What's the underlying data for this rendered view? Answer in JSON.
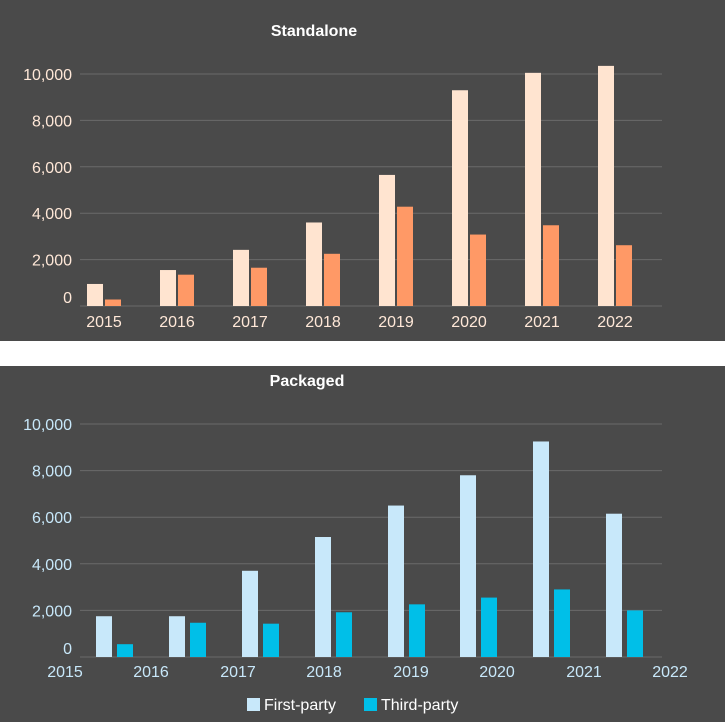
{
  "chart_data": [
    {
      "type": "bar",
      "title": "Standalone",
      "categories": [
        "2015",
        "2016",
        "2017",
        "2018",
        "2019",
        "2020",
        "2021",
        "2022"
      ],
      "series": [
        {
          "values": [
            950,
            1550,
            2420,
            3600,
            5650,
            9300,
            10050,
            10350
          ],
          "color": "#ffe4d0"
        },
        {
          "values": [
            280,
            1350,
            1650,
            2250,
            4280,
            3080,
            3480,
            2620
          ],
          "color": "#ff9966"
        }
      ],
      "ylim": [
        0,
        10000
      ],
      "yticks": [
        "0",
        "2,000",
        "4,000",
        "6,000",
        "8,000",
        "10,000"
      ],
      "grid": true,
      "text_color": "#ffe8d8"
    },
    {
      "type": "bar",
      "title": "Packaged",
      "categories": [
        "2015",
        "2016",
        "2017",
        "2018",
        "2019",
        "2020",
        "2021",
        "2022"
      ],
      "series": [
        {
          "name": "First-party",
          "values": [
            1750,
            1750,
            3700,
            5150,
            6500,
            7800,
            9250,
            6150
          ],
          "color": "#c8e8fa"
        },
        {
          "name": "Third-party",
          "values": [
            550,
            1470,
            1430,
            1920,
            2260,
            2550,
            2900,
            2000
          ],
          "color": "#00bfe8"
        }
      ],
      "ylim": [
        0,
        10000
      ],
      "yticks": [
        "0",
        "2,000",
        "4,000",
        "6,000",
        "8,000",
        "10,000"
      ],
      "grid": true,
      "legend": "bottom",
      "text_color": "#c8e8fa"
    }
  ]
}
